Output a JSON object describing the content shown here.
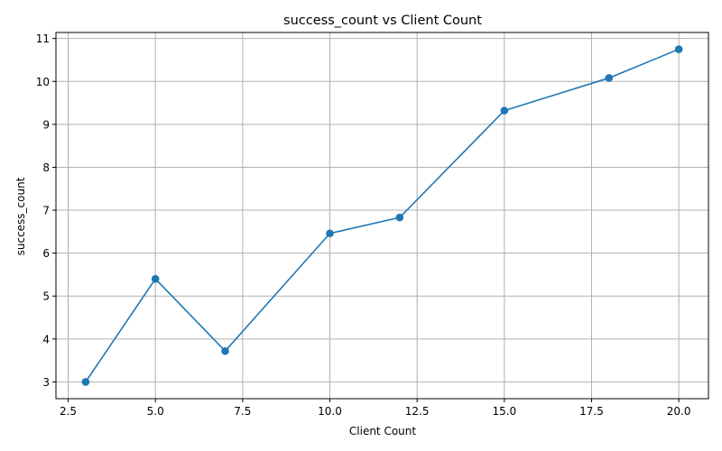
{
  "chart_data": {
    "type": "line",
    "title": "success_count vs Client Count",
    "xlabel": "Client Count",
    "ylabel": "success_count",
    "x": [
      3,
      5,
      7,
      10,
      12,
      15,
      18,
      20
    ],
    "series": [
      {
        "values": [
          3.0,
          5.4,
          3.72,
          6.46,
          6.83,
          9.32,
          10.08,
          10.75
        ],
        "color": "#1f77b4",
        "marker": "circle"
      }
    ],
    "xlim": [
      2.15,
      20.85
    ],
    "ylim": [
      2.61,
      11.14
    ],
    "xticks": [
      2.5,
      5.0,
      7.5,
      10.0,
      12.5,
      15.0,
      17.5,
      20.0
    ],
    "xtick_labels": [
      "2.5",
      "5.0",
      "7.5",
      "10.0",
      "12.5",
      "15.0",
      "17.5",
      "20.0"
    ],
    "yticks": [
      3,
      4,
      5,
      6,
      7,
      8,
      9,
      10,
      11
    ],
    "ytick_labels": [
      "3",
      "4",
      "5",
      "6",
      "7",
      "8",
      "9",
      "10",
      "11"
    ],
    "grid": true,
    "legend": "none"
  }
}
